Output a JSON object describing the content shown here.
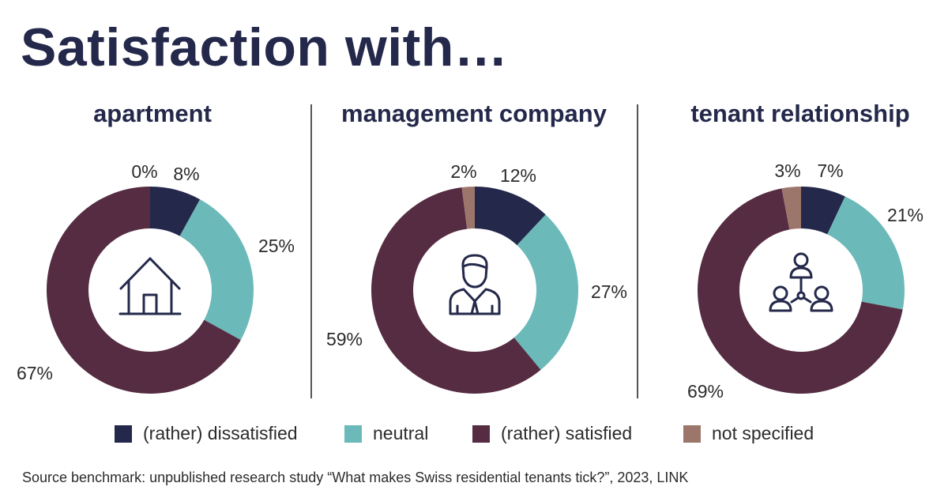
{
  "page": {
    "title": "Satisfaction with…",
    "source": "Source benchmark: unpublished research study “What makes Swiss residential tenants tick?”, 2023, LINK"
  },
  "colors": {
    "title": "#24284a",
    "rather_dissatisfied": "#24284a",
    "neutral": "#6cb9b9",
    "rather_satisfied": "#552c42",
    "not_specified": "#9d766b"
  },
  "legend": [
    {
      "label": "(rather) dissatisfied",
      "color": "#24284a"
    },
    {
      "label": "neutral",
      "color": "#6cb9b9"
    },
    {
      "label": "(rather) satisfied",
      "color": "#552c42"
    },
    {
      "label": "not specified",
      "color": "#9d766b"
    }
  ],
  "chart_data": [
    {
      "type": "pie",
      "title": "apartment",
      "icon": "house-icon",
      "categories": [
        "(rather) dissatisfied",
        "neutral",
        "(rather) satisfied",
        "not specified"
      ],
      "values": [
        8,
        25,
        67,
        0
      ],
      "labels": [
        "8%",
        "25%",
        "67%",
        "0%"
      ]
    },
    {
      "type": "pie",
      "title": "management company",
      "icon": "manager-icon",
      "categories": [
        "(rather) dissatisfied",
        "neutral",
        "(rather) satisfied",
        "not specified"
      ],
      "values": [
        12,
        27,
        59,
        2
      ],
      "labels": [
        "12%",
        "27%",
        "59%",
        "2%"
      ]
    },
    {
      "type": "pie",
      "title": "tenant relationship",
      "icon": "people-network-icon",
      "categories": [
        "(rather) dissatisfied",
        "neutral",
        "(rather) satisfied",
        "not specified"
      ],
      "values": [
        7,
        21,
        69,
        3
      ],
      "labels": [
        "7%",
        "21%",
        "69%",
        "3%"
      ]
    }
  ]
}
